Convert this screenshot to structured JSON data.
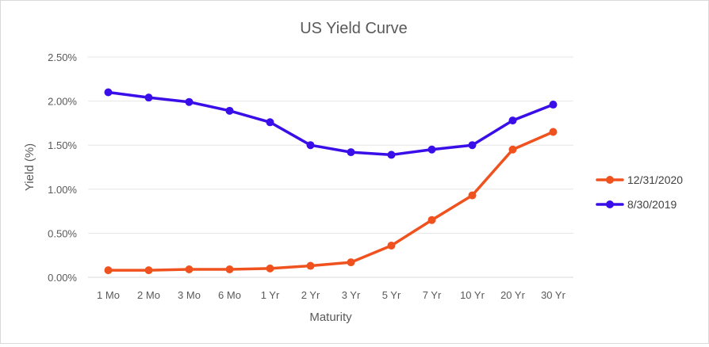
{
  "chart_data": {
    "type": "line",
    "title": "US Yield Curve",
    "xlabel": "Maturity",
    "ylabel": "Yield (%)",
    "categories": [
      "1 Mo",
      "2 Mo",
      "3 Mo",
      "6 Mo",
      "1 Yr",
      "2 Yr",
      "3 Yr",
      "5 Yr",
      "7 Yr",
      "10 Yr",
      "20 Yr",
      "30 Yr"
    ],
    "ylim": [
      0,
      2.5
    ],
    "yticks": [
      "0.00%",
      "0.50%",
      "1.00%",
      "1.50%",
      "2.00%",
      "2.50%"
    ],
    "ytick_values": [
      0,
      0.5,
      1.0,
      1.5,
      2.0,
      2.5
    ],
    "grid": true,
    "legend_position": "right",
    "series": [
      {
        "name": "12/31/2020",
        "color": "#f0521f",
        "values": [
          0.08,
          0.08,
          0.09,
          0.09,
          0.1,
          0.13,
          0.17,
          0.36,
          0.65,
          0.93,
          1.45,
          1.65
        ]
      },
      {
        "name": "8/30/2019",
        "color": "#3a0ee8",
        "values": [
          2.1,
          2.04,
          1.99,
          1.89,
          1.76,
          1.5,
          1.42,
          1.39,
          1.45,
          1.5,
          1.78,
          1.96
        ]
      }
    ]
  }
}
